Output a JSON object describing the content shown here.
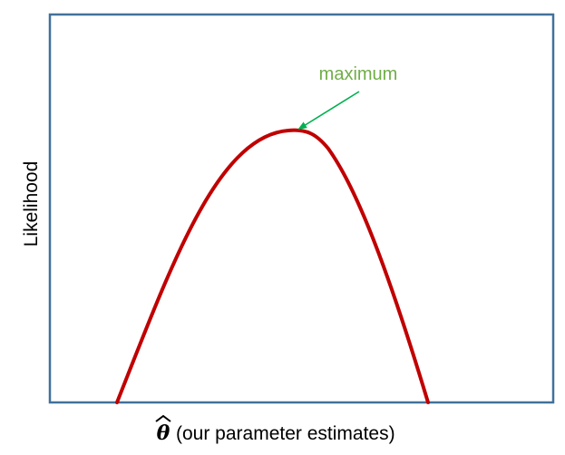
{
  "figure": {
    "ylabel": "Likelihood",
    "xlabel_symbol": "θ",
    "xlabel_text": "(our parameter estimates)",
    "annotation": "maximum"
  },
  "colors": {
    "frame": "#41719c",
    "curve": "#c00000",
    "annotation_text": "#70ad47",
    "annotation_arrow": "#00b050",
    "label_text": "#000000"
  }
}
